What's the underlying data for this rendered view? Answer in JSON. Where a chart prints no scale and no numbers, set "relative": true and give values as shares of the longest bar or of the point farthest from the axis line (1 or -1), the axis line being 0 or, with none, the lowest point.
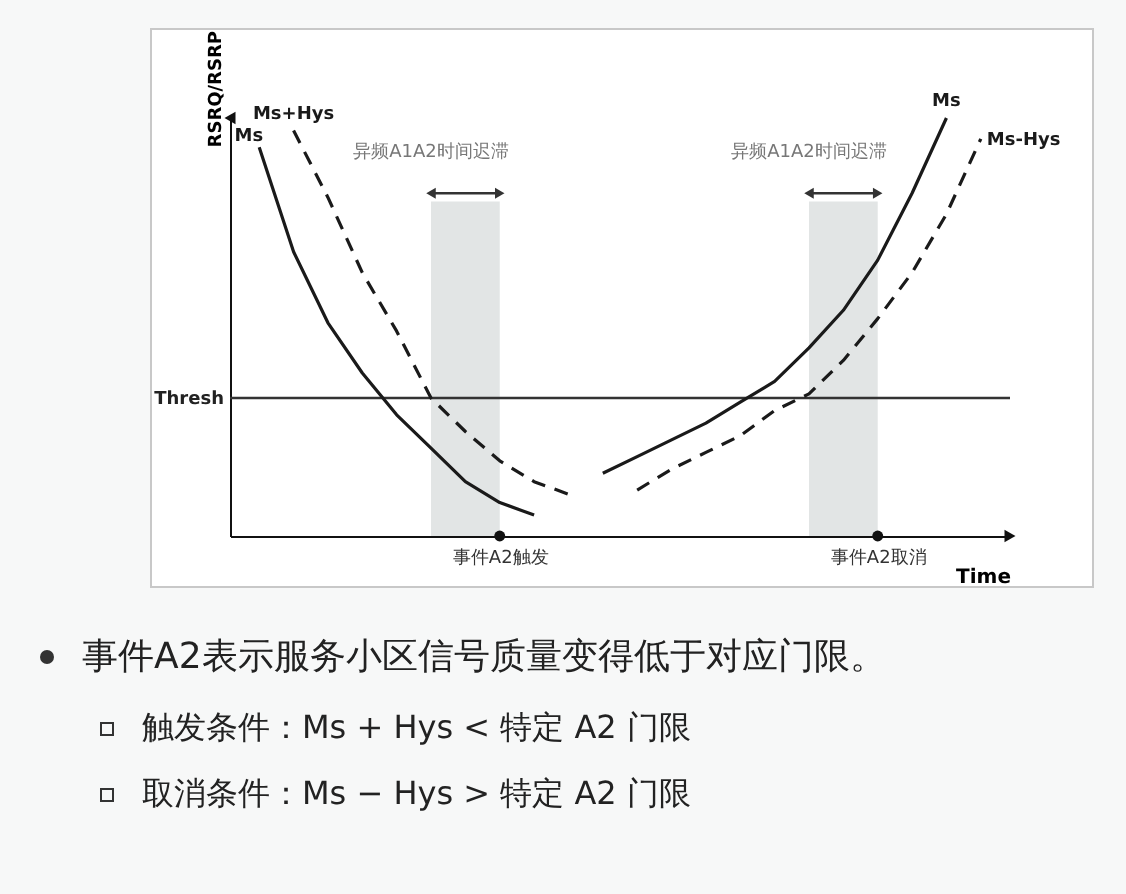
{
  "chart_data": {
    "type": "line",
    "relative": true,
    "ylabel": "RSRQ/RSRP",
    "xlabel": "Time",
    "tick_labels": "x",
    "categories": [
      null,
      null,
      null,
      null,
      null,
      null,
      null,
      "事件A2触发",
      null,
      null,
      null,
      null,
      null,
      null,
      null,
      null,
      null,
      null,
      "事件A2取消",
      null,
      null,
      null
    ],
    "series": [
      {
        "name": "Ms",
        "color": "#1a1a1a",
        "line_style": "solid",
        "values": [
          0.93,
          0.68,
          0.51,
          0.39,
          0.29,
          0.21,
          0.13,
          0.08,
          0.05,
          null,
          null,
          null,
          null,
          null,
          null,
          null,
          null,
          null,
          null,
          null,
          null,
          null
        ]
      },
      {
        "name": "Ms+Hys",
        "color": "#1a1a1a",
        "line_style": "dashed",
        "values": [
          null,
          0.97,
          0.81,
          0.63,
          0.49,
          0.33,
          0.25,
          0.18,
          0.13,
          0.1,
          null,
          null,
          null,
          null,
          null,
          null,
          null,
          null,
          null,
          null,
          null,
          null
        ]
      },
      {
        "name": "Ms",
        "color": "#1a1a1a",
        "line_style": "solid",
        "values": [
          null,
          null,
          null,
          null,
          null,
          null,
          null,
          null,
          null,
          null,
          0.15,
          0.19,
          0.23,
          0.27,
          0.32,
          0.37,
          0.45,
          0.54,
          0.66,
          0.82,
          1,
          null
        ]
      },
      {
        "name": "Ms-Hys",
        "color": "#1a1a1a",
        "line_style": "dashed",
        "values": [
          null,
          null,
          null,
          null,
          null,
          null,
          null,
          null,
          null,
          null,
          null,
          0.11,
          0.16,
          0.2,
          0.24,
          0.3,
          0.34,
          0.42,
          0.52,
          0.63,
          0.77,
          0.95
        ]
      }
    ],
    "ref_lines": [
      {
        "axis": "y",
        "value": 0.33,
        "label": "Thresh",
        "color": "#333333"
      }
    ],
    "annotations": [
      "异频A1A2时间迟滞",
      "异频A1A2时间迟滞",
      "事件A2表示服务小区信号质量变得低于对应门限。",
      "触发条件：Ms + Hys < 特定 A2 门限",
      "取消条件：Ms − Hys > 特定 A2 门限"
    ]
  }
}
